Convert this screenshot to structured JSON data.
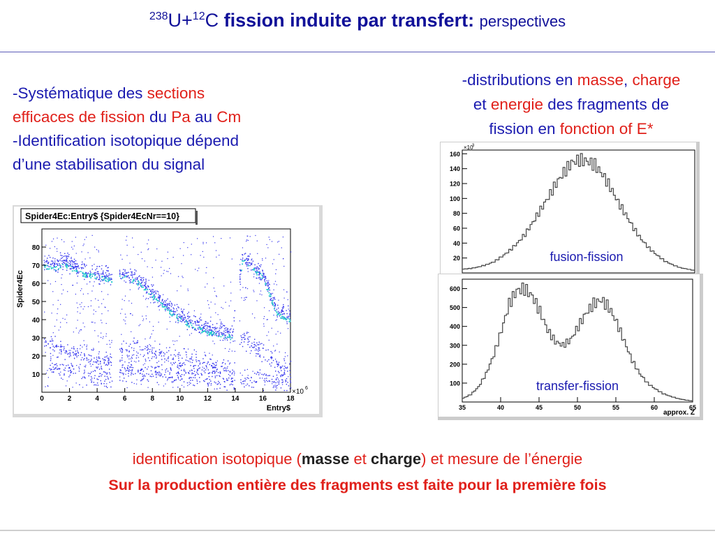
{
  "title": {
    "mass_a": "238",
    "elem_a": "U+",
    "mass_b": "12",
    "elem_b": "C",
    "bold": "fission induite par transfert:",
    "light": "perspectives"
  },
  "left_text": {
    "l1a": "-Systématique des ",
    "l1b": "sections",
    "l2a": "efficaces de fission",
    "l2b": " du ",
    "l2c": "Pa",
    "l2d": " au ",
    "l2e": "Cm",
    "l3": "-Identification isotopique dépend",
    "l4": "d’une stabilisation du signal"
  },
  "right_text": {
    "r1a": "-distributions en ",
    "r1b": "masse",
    "r1c": ", ",
    "r1d": "charge",
    "r2a": "et ",
    "r2b": "energie",
    "r2c": " des fragments de",
    "r3a": "fission en ",
    "r3b": "fonction of E*"
  },
  "bottom": {
    "b1a": "identification isotopique (",
    "b1b": "masse",
    "b1c": " et ",
    "b1d": "charge",
    "b1e": ") et mesure de l’énergie",
    "b2": "Sur la production entière des fragments est faite pour la première fois"
  },
  "chart_data": [
    {
      "type": "scatter",
      "title": "Spider4Ec:Entry$ {Spider4EcNr==10}",
      "xlabel": "Entry$",
      "ylabel": "Spider4Ec",
      "x_exponent": "×10",
      "x_exponent_power": "6",
      "xlim": [
        0,
        18
      ],
      "ylim": [
        0,
        90
      ],
      "x_ticks": [
        "0",
        "2",
        "4",
        "6",
        "8",
        "10",
        "12",
        "14",
        "16",
        "18"
      ],
      "y_ticks": [
        "10",
        "20",
        "30",
        "40",
        "50",
        "60",
        "70",
        "80"
      ],
      "bands": [
        {
          "name": "band1",
          "x": [
            0.1,
            0.8,
            1.5,
            3,
            4.5,
            5,
            6,
            7,
            8,
            9,
            10,
            11,
            12,
            13,
            13.8,
            14.5,
            15,
            16,
            17,
            18
          ],
          "y": [
            72,
            70,
            73,
            67,
            65,
            64,
            66,
            62,
            55,
            48,
            42,
            38,
            35,
            34,
            32,
            75,
            72,
            65,
            45,
            42
          ]
        },
        {
          "name": "band2",
          "x": [
            0.1,
            2,
            4,
            5,
            6,
            8,
            10,
            12,
            13,
            13.8,
            14.5,
            16,
            17,
            18
          ],
          "y": [
            28,
            22,
            18,
            17,
            25,
            22,
            18,
            16,
            14,
            12,
            30,
            22,
            16,
            12
          ]
        },
        {
          "name": "band3",
          "x": [
            0.5,
            3,
            5,
            6,
            9,
            12,
            14,
            16,
            18
          ],
          "y": [
            14,
            10,
            8,
            12,
            10,
            8,
            6,
            8,
            5
          ]
        }
      ]
    },
    {
      "type": "line",
      "name": "fusion-fission",
      "y_exponent": "×10",
      "y_exponent_power": "3",
      "y_ticks": [
        "20",
        "40",
        "60",
        "80",
        "100",
        "120",
        "140",
        "160"
      ],
      "ylim": [
        0,
        165
      ],
      "xlim": [
        35,
        65
      ],
      "x": [
        35,
        36,
        37,
        38,
        39,
        40,
        41,
        42,
        43,
        44,
        45,
        46,
        47,
        48,
        49,
        50,
        51,
        52,
        53,
        54,
        55,
        56,
        57,
        58,
        59,
        60,
        61,
        62,
        63,
        64,
        65
      ],
      "values": [
        5,
        6,
        8,
        11,
        15,
        22,
        30,
        40,
        52,
        68,
        85,
        102,
        120,
        135,
        148,
        152,
        150,
        145,
        132,
        115,
        95,
        78,
        60,
        45,
        33,
        24,
        16,
        11,
        7,
        5,
        3
      ]
    },
    {
      "type": "line",
      "name": "transfer-fission",
      "xlabel": "approx. Z",
      "x_ticks": [
        "35",
        "40",
        "45",
        "50",
        "55",
        "60",
        "65"
      ],
      "y_ticks": [
        "100",
        "200",
        "300",
        "400",
        "500",
        "600"
      ],
      "ylim": [
        0,
        650
      ],
      "xlim": [
        35,
        65
      ],
      "x": [
        35,
        36,
        37,
        38,
        39,
        40,
        41,
        42,
        43,
        44,
        45,
        46,
        47,
        48,
        49,
        50,
        51,
        52,
        53,
        54,
        55,
        56,
        57,
        58,
        59,
        60,
        61,
        62,
        63,
        64,
        65
      ],
      "values": [
        20,
        40,
        80,
        150,
        250,
        380,
        520,
        590,
        600,
        560,
        480,
        380,
        320,
        300,
        330,
        400,
        470,
        520,
        540,
        500,
        420,
        320,
        220,
        150,
        100,
        70,
        45,
        30,
        18,
        10,
        5
      ]
    }
  ],
  "colors": {
    "title": "#111199",
    "text_blue": "#1b1bb0",
    "text_red": "#e0201a",
    "points": "#3333ee",
    "band_core": "#22cccc"
  }
}
